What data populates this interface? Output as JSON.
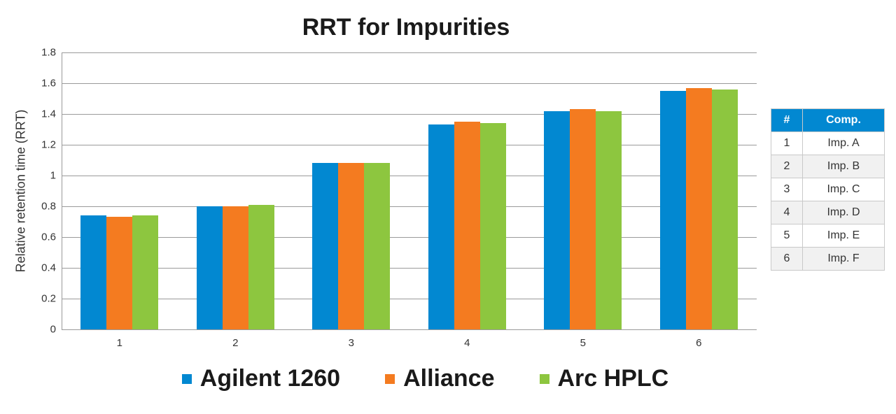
{
  "chart_data": {
    "type": "bar",
    "title": "RRT for Impurities",
    "xlabel": "",
    "ylabel": "Relative retention time (RRT)",
    "ylim": [
      0,
      1.8
    ],
    "yticks": [
      "0",
      "0.2",
      "0.4",
      "0.6",
      "0.8",
      "1",
      "1.2",
      "1.4",
      "1.6",
      "1.8"
    ],
    "grid": true,
    "legend_position": "bottom",
    "categories": [
      "1",
      "2",
      "3",
      "4",
      "5",
      "6"
    ],
    "series": [
      {
        "name": "Agilent 1260",
        "color": "#0288d1",
        "values": [
          0.74,
          0.8,
          1.08,
          1.33,
          1.42,
          1.55
        ]
      },
      {
        "name": "Alliance",
        "color": "#f47b20",
        "values": [
          0.73,
          0.8,
          1.08,
          1.35,
          1.43,
          1.57
        ]
      },
      {
        "name": "Arc HPLC",
        "color": "#8dc63f",
        "values": [
          0.74,
          0.81,
          1.08,
          1.34,
          1.42,
          1.56
        ]
      }
    ]
  },
  "legend": {
    "items": [
      {
        "label": "Agilent 1260",
        "color": "#0288d1"
      },
      {
        "label": "Alliance",
        "color": "#f47b20"
      },
      {
        "label": "Arc HPLC",
        "color": "#8dc63f"
      }
    ]
  },
  "table": {
    "headers": [
      "#",
      "Comp."
    ],
    "rows": [
      [
        "1",
        "Imp. A"
      ],
      [
        "2",
        "Imp. B"
      ],
      [
        "3",
        "Imp. C"
      ],
      [
        "4",
        "Imp. D"
      ],
      [
        "5",
        "Imp. E"
      ],
      [
        "6",
        "Imp. F"
      ]
    ]
  }
}
